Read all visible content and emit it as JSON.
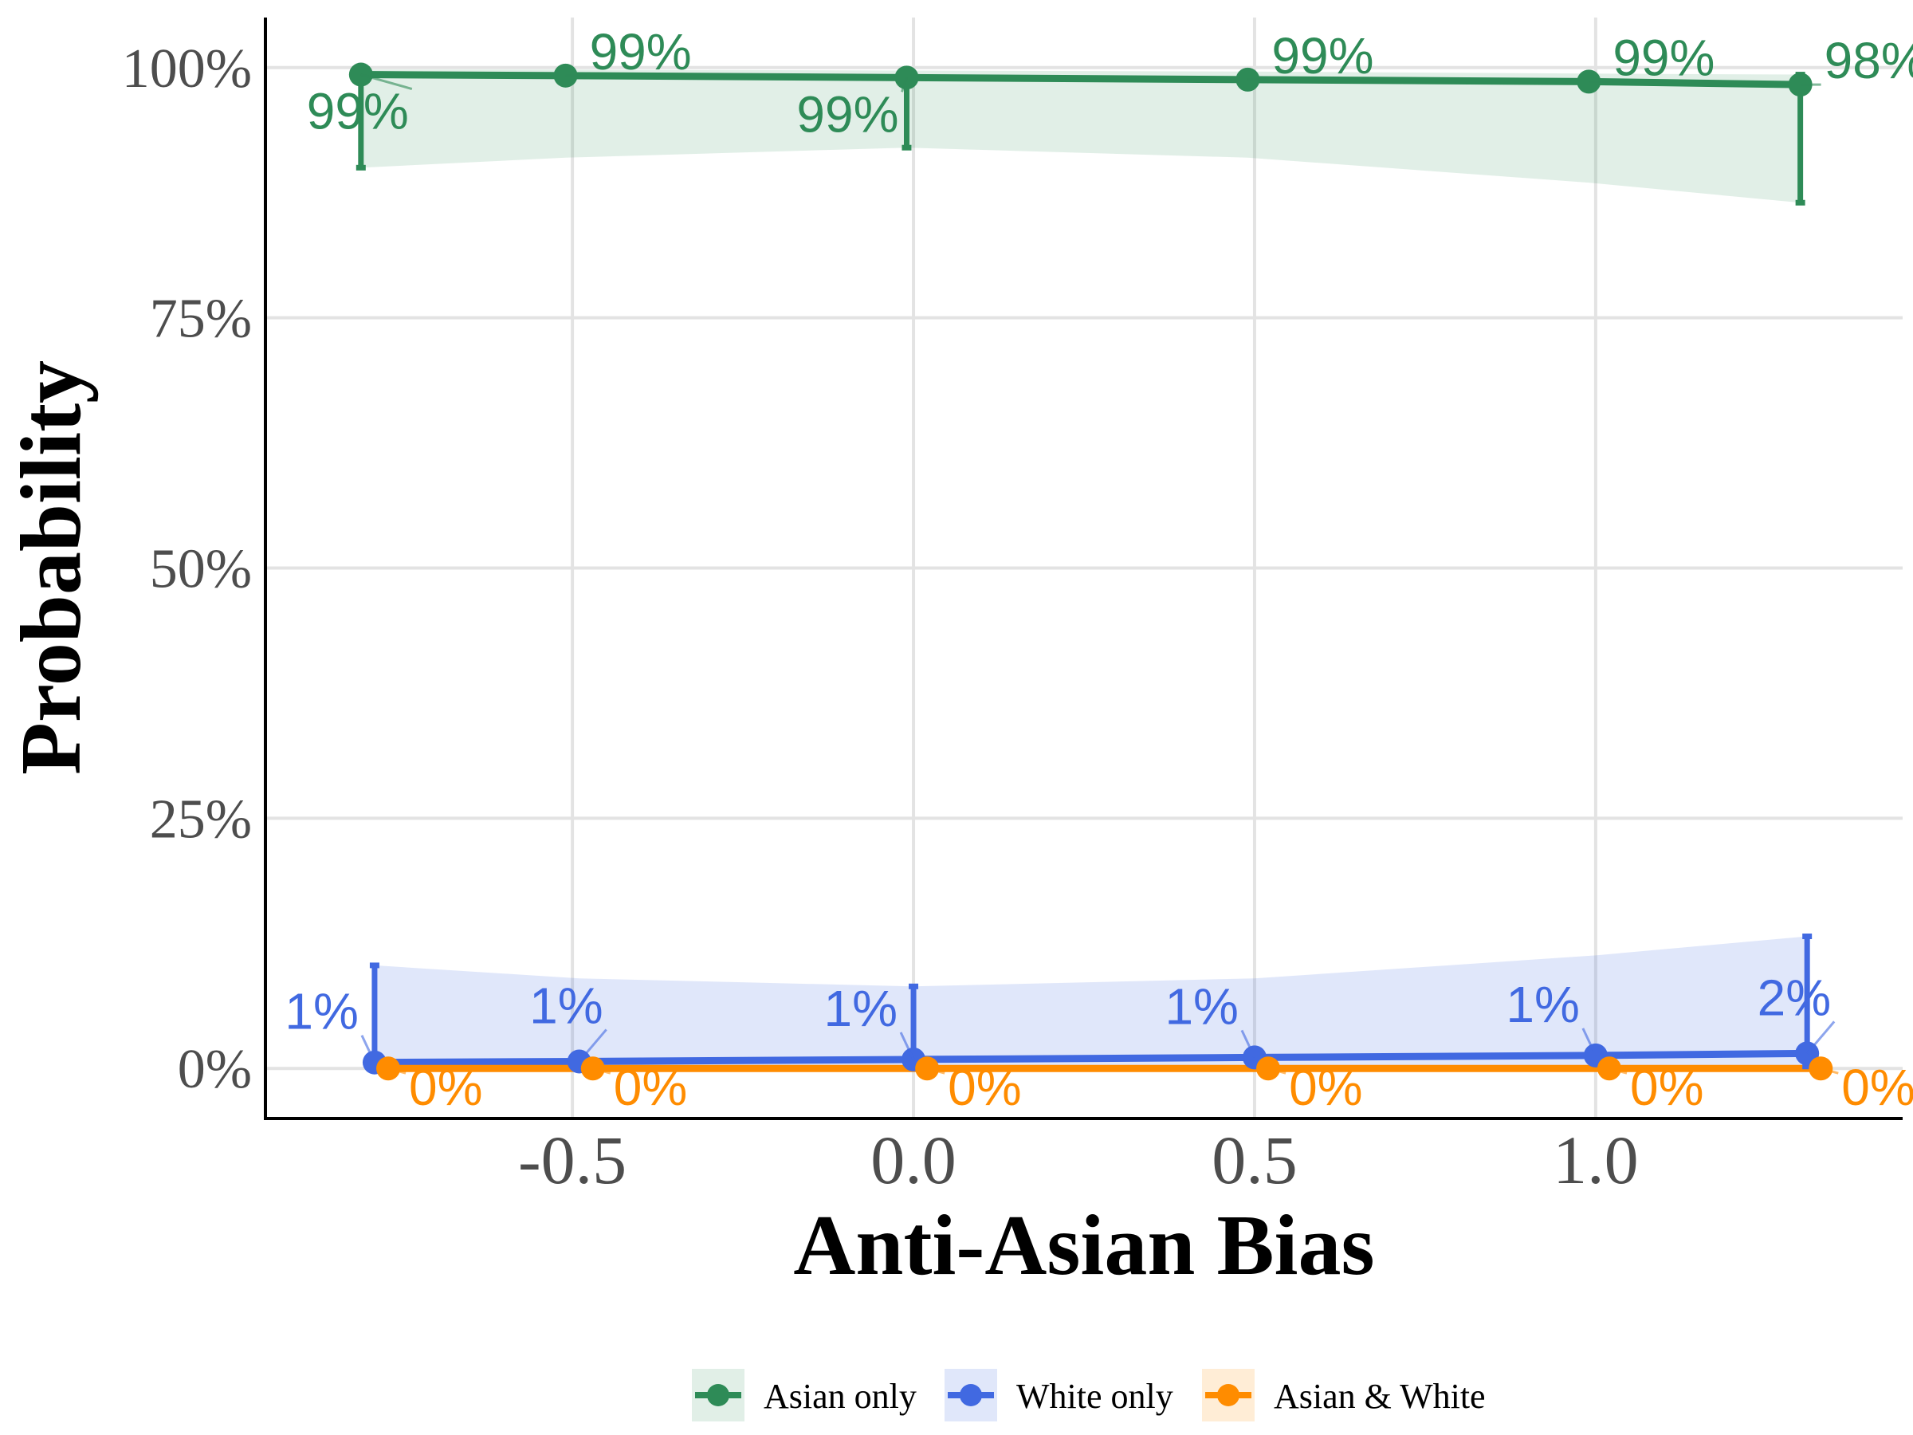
{
  "chart_data": {
    "type": "line",
    "title": "",
    "xlabel": "Anti-Asian Bias",
    "ylabel": "Probability",
    "x_ticks": [
      "-0.5",
      "0.0",
      "0.5",
      "1.0"
    ],
    "x_tick_values": [
      -0.5,
      0.0,
      0.5,
      1.0
    ],
    "y_ticks": [
      "0%",
      "25%",
      "50%",
      "75%",
      "100%"
    ],
    "y_tick_values": [
      0,
      25,
      50,
      75,
      100
    ],
    "xlim": [
      -0.95,
      1.45
    ],
    "ylim": [
      -5,
      105
    ],
    "grid": true,
    "legend_position": "bottom",
    "series": [
      {
        "name": "Asian only",
        "color": "#2e8b57",
        "x": [
          -0.81,
          -0.51,
          -0.01,
          0.49,
          0.99,
          1.3
        ],
        "y": [
          99.3,
          99.2,
          99.0,
          98.8,
          98.6,
          98.3
        ],
        "ci_low": [
          90.0,
          91.0,
          92.0,
          91.0,
          88.5,
          86.5
        ],
        "ci_high": [
          99.8,
          99.8,
          99.7,
          99.6,
          99.4,
          99.3
        ],
        "labels": [
          "99%",
          "99%",
          "99%",
          "99%",
          "99%",
          "98%"
        ]
      },
      {
        "name": "White only",
        "color": "#4169e1",
        "x": [
          -0.79,
          -0.49,
          0.0,
          0.5,
          1.0,
          1.31
        ],
        "y": [
          0.6,
          0.7,
          0.9,
          1.1,
          1.3,
          1.5
        ],
        "ci_low": [
          0.1,
          0.1,
          0.1,
          0.2,
          0.2,
          0.2
        ],
        "ci_high": [
          10.3,
          9.0,
          8.2,
          9.0,
          11.3,
          13.2
        ],
        "labels": [
          "1%",
          "1%",
          "1%",
          "1%",
          "1%",
          "2%"
        ]
      },
      {
        "name": "Asian & White",
        "color": "#ff8c00",
        "x": [
          -0.77,
          -0.47,
          0.02,
          0.52,
          1.02,
          1.33
        ],
        "y": [
          0.0,
          0.0,
          0.0,
          0.0,
          0.0,
          0.0
        ],
        "ci_low": [
          0.0,
          0.0,
          0.0,
          0.0,
          0.0,
          0.0
        ],
        "ci_high": [
          0.1,
          0.1,
          0.1,
          0.1,
          0.1,
          0.1
        ],
        "labels": [
          "0%",
          "0%",
          "0%",
          "0%",
          "0%",
          "0%"
        ]
      }
    ]
  }
}
